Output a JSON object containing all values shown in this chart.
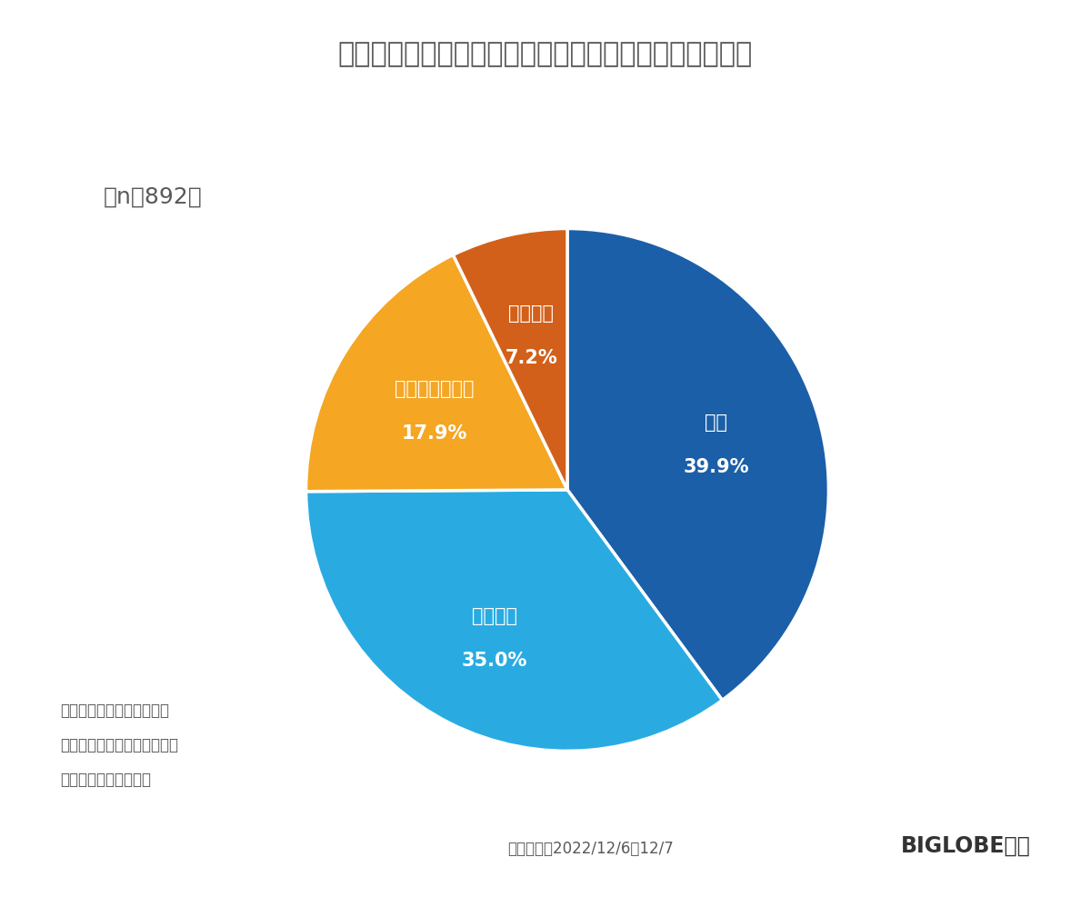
{
  "title_jp": "「つながらない権利＊」に対する配慮が必要だと思うか",
  "n_label": "（n＝892）",
  "slices": [
    {
      "label": "思う",
      "pct_label": "39.9%",
      "value": 39.9,
      "color": "#1B5FA8"
    },
    {
      "label": "やや思う",
      "pct_label": "35.0%",
      "value": 35.0,
      "color": "#29ABE2"
    },
    {
      "label": "あまり思わない",
      "pct_label": "17.9%",
      "value": 17.9,
      "color": "#F5A623"
    },
    {
      "label": "思わない",
      "pct_label": "7.2%",
      "value": 7.2,
      "color": "#D2601A"
    }
  ],
  "footnote_lines": [
    "＊：勤務時間外や休日に、",
    "　仕事上のメールや電話への",
    "　対応を拒否する権利"
  ],
  "survey_period": "調査期間：2022/12/6～12/7",
  "brand": "BIGLOBE調べ",
  "background_color": "#FFFFFF",
  "text_color_white": "#FFFFFF",
  "text_color_dark": "#595959",
  "title_color": "#595959",
  "n_color": "#595959",
  "footnote_color": "#595959",
  "survey_color": "#595959",
  "brand_color": "#333333",
  "title_fontsize": 22,
  "label_fontsize": 15,
  "pct_fontsize": 15,
  "n_fontsize": 18,
  "footnote_fontsize": 12,
  "survey_fontsize": 12,
  "brand_fontsize": 17
}
